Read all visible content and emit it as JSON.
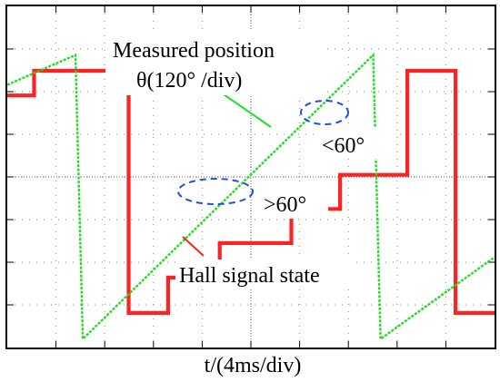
{
  "chart_data": {
    "type": "line",
    "xlabel": "t/(4ms/div)",
    "x_divisions": 10,
    "y_divisions": 8,
    "grid": "dotted",
    "series": [
      {
        "name": "Measured position",
        "unit_label": "θ(120° /div)",
        "color": "#22dd22",
        "comment_values": "sawtooth position ramp, x in divisions (4 ms/div), y in divisions",
        "points": [
          [
            0,
            6.16
          ],
          [
            1.4,
            6.86
          ],
          [
            1.55,
            0.2
          ],
          [
            7.51,
            6.86
          ],
          [
            7.66,
            0.2
          ],
          [
            10,
            2.12
          ]
        ]
      },
      {
        "name": "Hall signal state",
        "color": "#ff2222",
        "comment_values": "six-step staircase, x in divisions, y in divisions",
        "points": [
          [
            0,
            5.91
          ],
          [
            0.55,
            5.91
          ],
          [
            0.55,
            6.49
          ],
          [
            1.55,
            6.49
          ],
          [
            2.49,
            6.49
          ],
          [
            2.49,
            0.81
          ],
          [
            3.3,
            0.81
          ],
          [
            3.3,
            1.64
          ],
          [
            4.36,
            1.64
          ],
          [
            4.36,
            2.45
          ],
          [
            5.83,
            2.45
          ],
          [
            5.83,
            3.25
          ],
          [
            6.83,
            3.25
          ],
          [
            6.83,
            4.05
          ],
          [
            8.21,
            4.05
          ],
          [
            8.21,
            6.49
          ],
          [
            9.2,
            6.49
          ],
          [
            9.2,
            0.81
          ],
          [
            10,
            0.81
          ]
        ]
      }
    ],
    "annotations": [
      {
        "text": "Measured position",
        "kind": "label"
      },
      {
        "text": "θ(120° /div)",
        "kind": "label"
      },
      {
        "text": "<60°",
        "kind": "callout"
      },
      {
        "text": ">60°",
        "kind": "callout"
      },
      {
        "text": "Hall signal state",
        "kind": "label"
      }
    ]
  }
}
